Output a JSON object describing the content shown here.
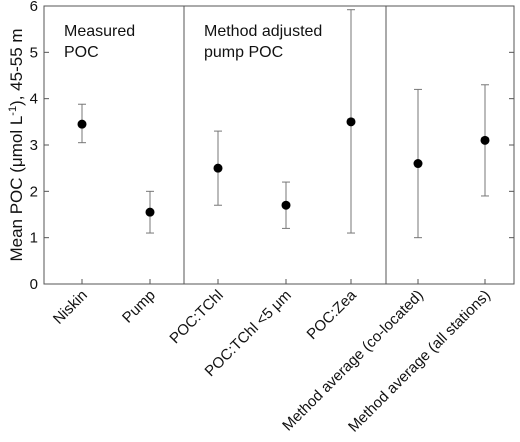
{
  "chart_data": {
    "type": "scatter",
    "ylabel_main": "Mean POC (μmol L",
    "ylabel_sup": "-1",
    "ylabel_tail": "), 45-55 m",
    "ylim": [
      0,
      6
    ],
    "yticks": [
      "0",
      "1",
      "2",
      "3",
      "4",
      "5",
      "6"
    ],
    "grid": false,
    "categories": [
      "Niskin",
      "Pump",
      "POC:TChl",
      "POC:TChl <5 μm",
      "POC:Zea",
      "Method average (co-located)",
      "Method average (all stations)"
    ],
    "values": [
      3.45,
      1.55,
      2.5,
      1.7,
      3.5,
      2.6,
      3.1
    ],
    "error_low": [
      3.05,
      1.1,
      1.7,
      1.2,
      1.1,
      1.0,
      1.9
    ],
    "error_high": [
      3.88,
      2.0,
      3.3,
      2.2,
      5.92,
      4.2,
      4.3
    ],
    "sections": [
      {
        "line1": "Measured",
        "line2": "POC"
      },
      {
        "line1": "Method adjusted",
        "line2": "pump POC"
      }
    ]
  },
  "colors": {
    "marker": "#000000",
    "errorbar": "#777777",
    "axis": "#555555"
  }
}
